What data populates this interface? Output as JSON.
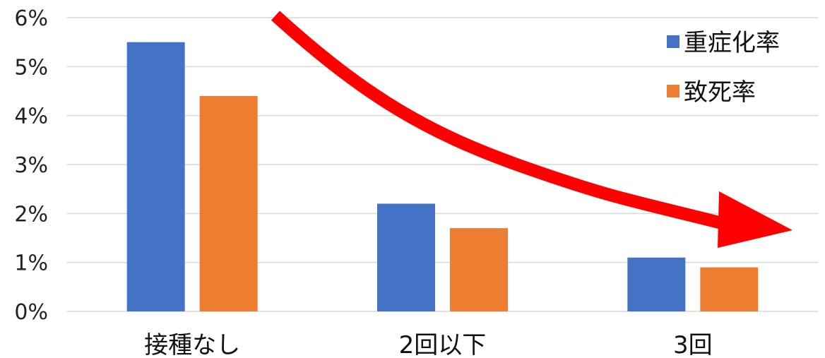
{
  "chart_data": {
    "type": "bar",
    "categories": [
      "接種なし",
      "2回以下",
      "3回"
    ],
    "series": [
      {
        "name": "重症化率",
        "values": [
          5.5,
          2.2,
          1.1
        ],
        "color": "#4472C4"
      },
      {
        "name": "致死率",
        "values": [
          4.4,
          1.7,
          0.9
        ],
        "color": "#ED7D31"
      }
    ],
    "ylim": [
      0,
      6
    ],
    "yticks": [
      "0%",
      "1%",
      "2%",
      "3%",
      "4%",
      "5%",
      "6%"
    ],
    "grid": true,
    "legend": "top-right",
    "annotation": {
      "type": "downward-trend-arrow",
      "color": "#FF0000"
    }
  }
}
